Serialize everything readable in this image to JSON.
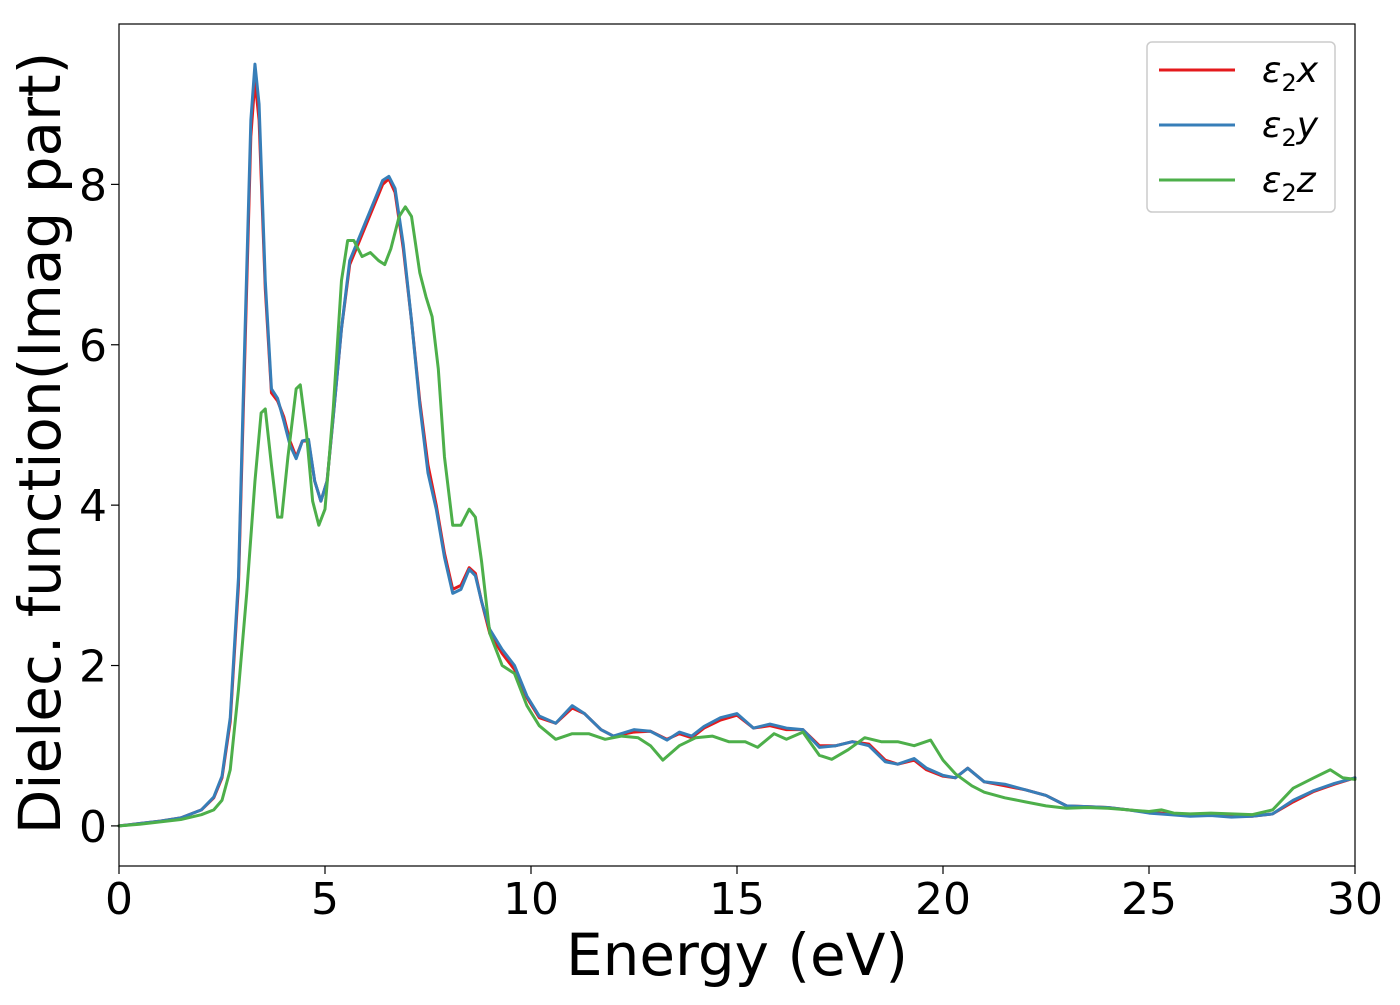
{
  "chart_data": {
    "type": "line",
    "title": "",
    "xlabel": "Energy (eV)",
    "ylabel": "Dielec. function(Imag part)",
    "xlim": [
      0,
      30
    ],
    "ylim": [
      -0.5,
      10.0
    ],
    "xticks": [
      0,
      5,
      10,
      15,
      20,
      25,
      30
    ],
    "yticks": [
      0,
      2,
      4,
      6,
      8
    ],
    "grid": false,
    "legend_position": "top-right",
    "series": [
      {
        "name": "ε2x",
        "legend_main": "ε",
        "legend_sub": "2",
        "legend_tail": "x",
        "color": "#e41a1c",
        "points": [
          [
            0,
            0.0
          ],
          [
            0.5,
            0.03
          ],
          [
            1.0,
            0.06
          ],
          [
            1.5,
            0.1
          ],
          [
            2.0,
            0.2
          ],
          [
            2.3,
            0.35
          ],
          [
            2.5,
            0.6
          ],
          [
            2.7,
            1.3
          ],
          [
            2.9,
            3.0
          ],
          [
            3.05,
            5.8
          ],
          [
            3.2,
            8.6
          ],
          [
            3.3,
            9.3
          ],
          [
            3.4,
            8.8
          ],
          [
            3.55,
            6.7
          ],
          [
            3.7,
            5.4
          ],
          [
            3.85,
            5.3
          ],
          [
            4.0,
            5.1
          ],
          [
            4.15,
            4.8
          ],
          [
            4.3,
            4.6
          ],
          [
            4.45,
            4.8
          ],
          [
            4.6,
            4.8
          ],
          [
            4.75,
            4.3
          ],
          [
            4.9,
            4.05
          ],
          [
            5.05,
            4.3
          ],
          [
            5.2,
            5.1
          ],
          [
            5.4,
            6.2
          ],
          [
            5.6,
            7.0
          ],
          [
            5.8,
            7.25
          ],
          [
            6.0,
            7.5
          ],
          [
            6.2,
            7.75
          ],
          [
            6.4,
            8.0
          ],
          [
            6.55,
            8.07
          ],
          [
            6.7,
            7.9
          ],
          [
            6.9,
            7.2
          ],
          [
            7.1,
            6.3
          ],
          [
            7.3,
            5.3
          ],
          [
            7.5,
            4.5
          ],
          [
            7.7,
            4.0
          ],
          [
            7.9,
            3.4
          ],
          [
            8.1,
            2.95
          ],
          [
            8.3,
            3.0
          ],
          [
            8.5,
            3.22
          ],
          [
            8.65,
            3.15
          ],
          [
            8.8,
            2.8
          ],
          [
            9.0,
            2.4
          ],
          [
            9.3,
            2.15
          ],
          [
            9.6,
            1.95
          ],
          [
            9.9,
            1.6
          ],
          [
            10.2,
            1.35
          ],
          [
            10.6,
            1.28
          ],
          [
            11.0,
            1.47
          ],
          [
            11.3,
            1.4
          ],
          [
            11.7,
            1.2
          ],
          [
            12.0,
            1.12
          ],
          [
            12.5,
            1.17
          ],
          [
            12.9,
            1.18
          ],
          [
            13.3,
            1.08
          ],
          [
            13.6,
            1.15
          ],
          [
            13.9,
            1.1
          ],
          [
            14.2,
            1.22
          ],
          [
            14.6,
            1.32
          ],
          [
            15.0,
            1.38
          ],
          [
            15.4,
            1.22
          ],
          [
            15.8,
            1.25
          ],
          [
            16.2,
            1.2
          ],
          [
            16.6,
            1.2
          ],
          [
            17.0,
            1.0
          ],
          [
            17.4,
            1.0
          ],
          [
            17.8,
            1.05
          ],
          [
            18.2,
            1.02
          ],
          [
            18.6,
            0.82
          ],
          [
            18.9,
            0.77
          ],
          [
            19.3,
            0.82
          ],
          [
            19.6,
            0.7
          ],
          [
            20.0,
            0.62
          ],
          [
            20.3,
            0.6
          ],
          [
            20.6,
            0.72
          ],
          [
            21.0,
            0.55
          ],
          [
            21.5,
            0.5
          ],
          [
            22.0,
            0.45
          ],
          [
            22.5,
            0.38
          ],
          [
            23.0,
            0.25
          ],
          [
            23.5,
            0.24
          ],
          [
            24.0,
            0.23
          ],
          [
            24.5,
            0.2
          ],
          [
            25.0,
            0.17
          ],
          [
            25.5,
            0.15
          ],
          [
            26.0,
            0.13
          ],
          [
            26.5,
            0.14
          ],
          [
            27.0,
            0.12
          ],
          [
            27.5,
            0.12
          ],
          [
            28.0,
            0.15
          ],
          [
            28.5,
            0.3
          ],
          [
            29.0,
            0.43
          ],
          [
            29.5,
            0.52
          ],
          [
            30.0,
            0.6
          ]
        ]
      },
      {
        "name": "ε2y",
        "legend_main": "ε",
        "legend_sub": "2",
        "legend_tail": "y",
        "color": "#377eb8",
        "points": [
          [
            0,
            0.0
          ],
          [
            0.5,
            0.03
          ],
          [
            1.0,
            0.06
          ],
          [
            1.5,
            0.1
          ],
          [
            2.0,
            0.2
          ],
          [
            2.3,
            0.36
          ],
          [
            2.5,
            0.62
          ],
          [
            2.7,
            1.35
          ],
          [
            2.9,
            3.1
          ],
          [
            3.05,
            6.0
          ],
          [
            3.2,
            8.8
          ],
          [
            3.3,
            9.5
          ],
          [
            3.4,
            9.0
          ],
          [
            3.55,
            6.8
          ],
          [
            3.7,
            5.45
          ],
          [
            3.85,
            5.33
          ],
          [
            4.0,
            5.05
          ],
          [
            4.15,
            4.75
          ],
          [
            4.3,
            4.58
          ],
          [
            4.45,
            4.8
          ],
          [
            4.6,
            4.82
          ],
          [
            4.75,
            4.3
          ],
          [
            4.9,
            4.05
          ],
          [
            5.05,
            4.3
          ],
          [
            5.2,
            5.1
          ],
          [
            5.4,
            6.2
          ],
          [
            5.6,
            7.05
          ],
          [
            5.8,
            7.3
          ],
          [
            6.0,
            7.55
          ],
          [
            6.2,
            7.8
          ],
          [
            6.4,
            8.05
          ],
          [
            6.55,
            8.1
          ],
          [
            6.7,
            7.95
          ],
          [
            6.9,
            7.25
          ],
          [
            7.1,
            6.3
          ],
          [
            7.3,
            5.25
          ],
          [
            7.5,
            4.4
          ],
          [
            7.7,
            3.95
          ],
          [
            7.9,
            3.35
          ],
          [
            8.1,
            2.9
          ],
          [
            8.3,
            2.95
          ],
          [
            8.5,
            3.2
          ],
          [
            8.65,
            3.12
          ],
          [
            8.8,
            2.8
          ],
          [
            9.0,
            2.45
          ],
          [
            9.3,
            2.2
          ],
          [
            9.6,
            2.0
          ],
          [
            9.9,
            1.62
          ],
          [
            10.2,
            1.37
          ],
          [
            10.6,
            1.28
          ],
          [
            11.0,
            1.5
          ],
          [
            11.3,
            1.4
          ],
          [
            11.7,
            1.2
          ],
          [
            12.0,
            1.12
          ],
          [
            12.5,
            1.2
          ],
          [
            12.9,
            1.18
          ],
          [
            13.3,
            1.07
          ],
          [
            13.6,
            1.17
          ],
          [
            13.9,
            1.12
          ],
          [
            14.2,
            1.24
          ],
          [
            14.6,
            1.35
          ],
          [
            15.0,
            1.4
          ],
          [
            15.4,
            1.22
          ],
          [
            15.8,
            1.27
          ],
          [
            16.2,
            1.22
          ],
          [
            16.6,
            1.2
          ],
          [
            17.0,
            0.98
          ],
          [
            17.4,
            1.0
          ],
          [
            17.8,
            1.05
          ],
          [
            18.2,
            1.0
          ],
          [
            18.6,
            0.8
          ],
          [
            18.9,
            0.77
          ],
          [
            19.3,
            0.84
          ],
          [
            19.6,
            0.72
          ],
          [
            20.0,
            0.63
          ],
          [
            20.3,
            0.6
          ],
          [
            20.6,
            0.72
          ],
          [
            21.0,
            0.55
          ],
          [
            21.5,
            0.52
          ],
          [
            22.0,
            0.45
          ],
          [
            22.5,
            0.38
          ],
          [
            23.0,
            0.25
          ],
          [
            23.5,
            0.24
          ],
          [
            24.0,
            0.23
          ],
          [
            24.5,
            0.2
          ],
          [
            25.0,
            0.16
          ],
          [
            25.5,
            0.14
          ],
          [
            26.0,
            0.12
          ],
          [
            26.5,
            0.13
          ],
          [
            27.0,
            0.11
          ],
          [
            27.5,
            0.12
          ],
          [
            28.0,
            0.15
          ],
          [
            28.5,
            0.32
          ],
          [
            29.0,
            0.44
          ],
          [
            29.5,
            0.53
          ],
          [
            30.0,
            0.6
          ]
        ]
      },
      {
        "name": "ε2z",
        "legend_main": "ε",
        "legend_sub": "2",
        "legend_tail": "z",
        "color": "#4daf4a",
        "points": [
          [
            0,
            0.0
          ],
          [
            0.5,
            0.02
          ],
          [
            1.0,
            0.05
          ],
          [
            1.5,
            0.08
          ],
          [
            2.0,
            0.14
          ],
          [
            2.3,
            0.2
          ],
          [
            2.5,
            0.32
          ],
          [
            2.7,
            0.7
          ],
          [
            2.9,
            1.7
          ],
          [
            3.1,
            2.9
          ],
          [
            3.3,
            4.3
          ],
          [
            3.45,
            5.15
          ],
          [
            3.55,
            5.2
          ],
          [
            3.7,
            4.5
          ],
          [
            3.85,
            3.85
          ],
          [
            3.95,
            3.85
          ],
          [
            4.1,
            4.6
          ],
          [
            4.3,
            5.45
          ],
          [
            4.4,
            5.5
          ],
          [
            4.55,
            4.9
          ],
          [
            4.7,
            4.05
          ],
          [
            4.85,
            3.75
          ],
          [
            5.0,
            3.95
          ],
          [
            5.2,
            5.2
          ],
          [
            5.4,
            6.8
          ],
          [
            5.55,
            7.3
          ],
          [
            5.7,
            7.3
          ],
          [
            5.9,
            7.1
          ],
          [
            6.1,
            7.15
          ],
          [
            6.3,
            7.05
          ],
          [
            6.45,
            7.0
          ],
          [
            6.6,
            7.2
          ],
          [
            6.8,
            7.6
          ],
          [
            6.95,
            7.72
          ],
          [
            7.1,
            7.6
          ],
          [
            7.3,
            6.9
          ],
          [
            7.45,
            6.6
          ],
          [
            7.6,
            6.35
          ],
          [
            7.75,
            5.7
          ],
          [
            7.9,
            4.6
          ],
          [
            8.1,
            3.75
          ],
          [
            8.3,
            3.75
          ],
          [
            8.5,
            3.95
          ],
          [
            8.65,
            3.85
          ],
          [
            8.8,
            3.3
          ],
          [
            9.0,
            2.4
          ],
          [
            9.3,
            2.0
          ],
          [
            9.6,
            1.9
          ],
          [
            9.9,
            1.5
          ],
          [
            10.2,
            1.25
          ],
          [
            10.6,
            1.08
          ],
          [
            11.0,
            1.15
          ],
          [
            11.4,
            1.15
          ],
          [
            11.8,
            1.08
          ],
          [
            12.2,
            1.12
          ],
          [
            12.6,
            1.1
          ],
          [
            12.9,
            1.0
          ],
          [
            13.2,
            0.82
          ],
          [
            13.6,
            1.0
          ],
          [
            14.0,
            1.1
          ],
          [
            14.4,
            1.12
          ],
          [
            14.8,
            1.05
          ],
          [
            15.2,
            1.05
          ],
          [
            15.5,
            0.98
          ],
          [
            15.9,
            1.15
          ],
          [
            16.2,
            1.08
          ],
          [
            16.6,
            1.17
          ],
          [
            17.0,
            0.88
          ],
          [
            17.3,
            0.83
          ],
          [
            17.7,
            0.95
          ],
          [
            18.1,
            1.1
          ],
          [
            18.5,
            1.05
          ],
          [
            18.9,
            1.05
          ],
          [
            19.3,
            1.0
          ],
          [
            19.7,
            1.07
          ],
          [
            20.0,
            0.82
          ],
          [
            20.3,
            0.65
          ],
          [
            20.7,
            0.5
          ],
          [
            21.0,
            0.42
          ],
          [
            21.5,
            0.35
          ],
          [
            22.0,
            0.3
          ],
          [
            22.5,
            0.25
          ],
          [
            23.0,
            0.22
          ],
          [
            23.5,
            0.23
          ],
          [
            24.0,
            0.22
          ],
          [
            24.5,
            0.2
          ],
          [
            25.0,
            0.18
          ],
          [
            25.3,
            0.2
          ],
          [
            25.6,
            0.16
          ],
          [
            26.0,
            0.15
          ],
          [
            26.5,
            0.16
          ],
          [
            27.0,
            0.15
          ],
          [
            27.5,
            0.14
          ],
          [
            28.0,
            0.2
          ],
          [
            28.5,
            0.47
          ],
          [
            29.0,
            0.6
          ],
          [
            29.4,
            0.7
          ],
          [
            29.7,
            0.6
          ],
          [
            30.0,
            0.58
          ]
        ]
      }
    ]
  }
}
